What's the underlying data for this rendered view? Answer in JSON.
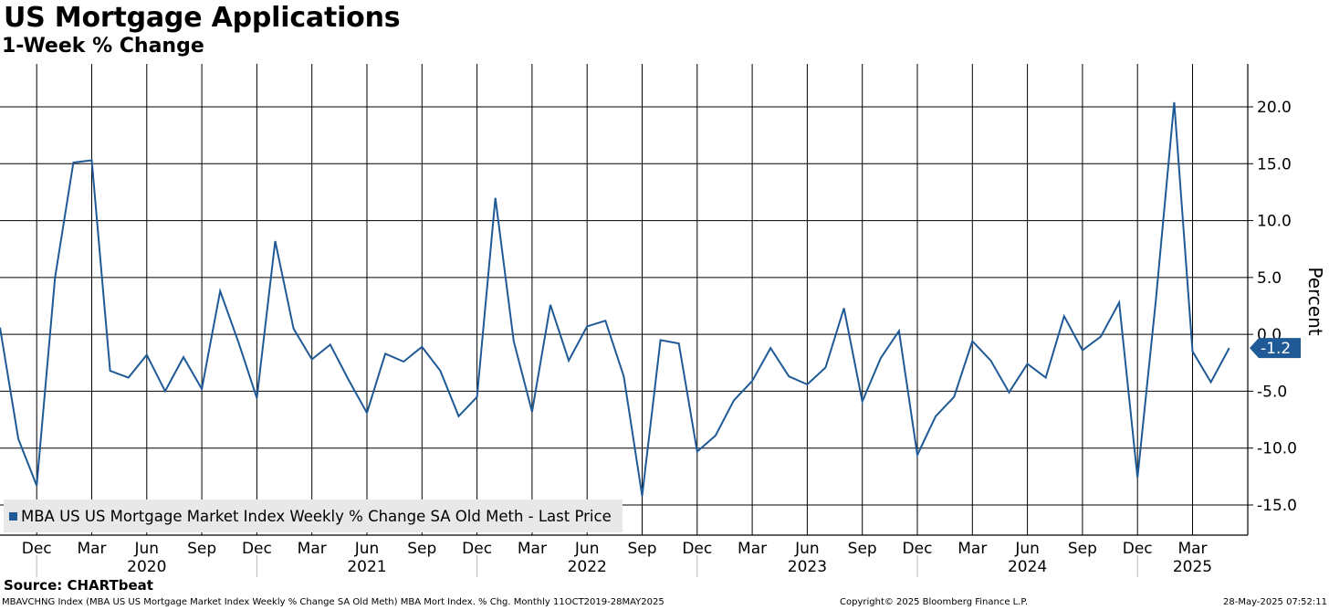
{
  "header": {
    "title": "US Mortgage Applications",
    "subtitle": "1-Week % Change"
  },
  "legend": {
    "label": "MBA US US Mortgage Market Index Weekly % Change SA Old Meth - Last Price"
  },
  "footer": {
    "source": "Source: CHARTbeat",
    "index_info": "MBAVCHNG Index (MBA US US Mortgage Market Index Weekly % Change SA Old Meth) MBA Mort Index. % Chg.  Monthly 11OCT2019-28MAY2025",
    "copyright": "Copyright© 2025 Bloomberg Finance L.P.",
    "timestamp": "28-May-2025 07:52:11"
  },
  "colors": {
    "line": "#1f5a96",
    "grid": "#000000",
    "label_bg": "#1f5a96"
  },
  "chart_data": {
    "type": "line",
    "title": "US Mortgage Applications",
    "subtitle": "1-Week % Change",
    "ylabel": "Percent",
    "xlabel": "",
    "ylim": [
      -17,
      24
    ],
    "y_ticks": [
      20,
      15,
      10,
      5,
      0,
      -5,
      -10,
      -15
    ],
    "y_tick_labels": [
      "20.0",
      "15.0",
      "10.0",
      "5.0",
      "0.0",
      "-5.0",
      "-10.0",
      "-15.0"
    ],
    "grid": true,
    "legend_position": "bottom-left",
    "x_month_labels": [
      "Dec",
      "Mar",
      "Jun",
      "Sep",
      "Dec",
      "Mar",
      "Jun",
      "Sep",
      "Dec",
      "Mar",
      "Jun",
      "Sep",
      "Dec",
      "Mar",
      "Jun",
      "Sep",
      "Dec",
      "Mar",
      "Jun",
      "Sep",
      "Dec",
      "Mar"
    ],
    "x_month_positions": [
      2,
      5,
      8,
      11,
      14,
      17,
      20,
      23,
      26,
      29,
      32,
      35,
      38,
      41,
      44,
      47,
      50,
      53,
      56,
      59,
      62,
      65
    ],
    "x_year_labels": [
      "2020",
      "2021",
      "2022",
      "2023",
      "2024",
      "2025"
    ],
    "x_year_positions": [
      8,
      20,
      32,
      44,
      56,
      65
    ],
    "x_year_separators": [
      2,
      14,
      26,
      38,
      50,
      62
    ],
    "last_value": -1.2,
    "last_value_label": "-1.2",
    "series": [
      {
        "name": "MBA US US Mortgage Market Index Weekly % Change SA Old Meth - Last Price",
        "x": [
          0,
          1,
          2,
          3,
          4,
          5,
          6,
          7,
          8,
          9,
          10,
          11,
          12,
          13,
          14,
          15,
          16,
          17,
          18,
          19,
          20,
          21,
          22,
          23,
          24,
          25,
          26,
          27,
          28,
          29,
          30,
          31,
          32,
          33,
          34,
          35,
          36,
          37,
          38,
          39,
          40,
          41,
          42,
          43,
          44,
          45,
          46,
          47,
          48,
          49,
          50,
          51,
          52,
          53,
          54,
          55,
          56,
          57,
          58,
          59,
          60,
          61,
          62,
          63,
          64,
          65,
          66,
          67
        ],
        "values": [
          0.6,
          -9.2,
          -13.3,
          5.0,
          15.1,
          15.3,
          -3.2,
          -3.8,
          -1.8,
          -5.0,
          -2.0,
          -4.8,
          3.8,
          -0.7,
          -5.6,
          8.2,
          0.5,
          -2.2,
          -0.9,
          -4.0,
          -6.9,
          -1.7,
          -2.4,
          -1.1,
          -3.2,
          -7.2,
          -5.5,
          12.0,
          -0.6,
          -6.8,
          2.6,
          -2.3,
          0.7,
          1.2,
          -3.7,
          -14.2,
          -0.5,
          -0.8,
          -10.3,
          -8.9,
          -5.8,
          -4.1,
          -1.2,
          -3.7,
          -4.4,
          -2.9,
          2.3,
          -5.9,
          -2.1,
          0.3,
          -10.6,
          -7.2,
          -5.5,
          -0.6,
          -2.3,
          -5.1,
          -2.6,
          -3.8,
          1.6,
          -1.4,
          -0.2,
          2.8,
          -12.6,
          3.0,
          20.4,
          -1.5,
          -4.2,
          -1.2
        ]
      }
    ]
  }
}
